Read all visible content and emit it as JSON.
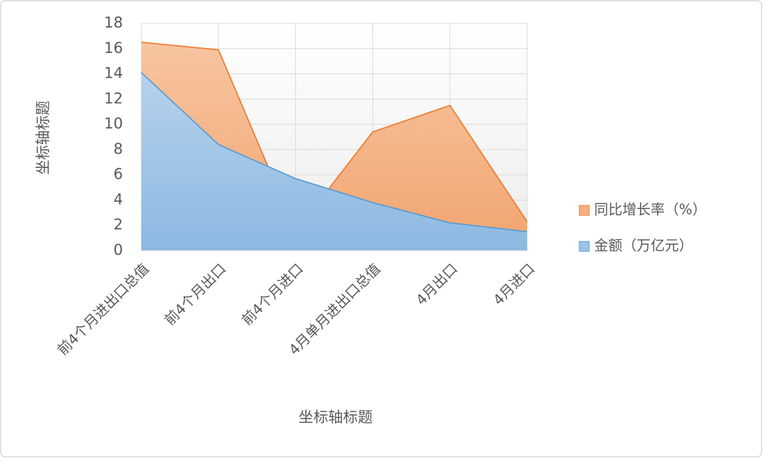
{
  "chart_data": {
    "type": "area",
    "x_label": "坐标轴标题",
    "y_label": "坐标轴标题",
    "categories": [
      "前4个月进出口总值",
      "前4个月出口",
      "前4个月进口",
      "4月单月进出口总值",
      "4月出口",
      "4月进口"
    ],
    "series": [
      {
        "name": "同比增长率（%）",
        "color": "#ed7d31",
        "values": [
          16.5,
          15.9,
          1.5,
          9.4,
          11.5,
          2.3
        ]
      },
      {
        "name": "金额（万亿元）",
        "color": "#5b9bd5",
        "values": [
          14.1,
          8.4,
          5.7,
          3.8,
          2.2,
          1.5
        ]
      }
    ],
    "ylim": [
      0,
      18
    ],
    "yticks": [
      0,
      2,
      4,
      6,
      8,
      10,
      12,
      14,
      16,
      18
    ],
    "grid": true,
    "legend": "right"
  }
}
